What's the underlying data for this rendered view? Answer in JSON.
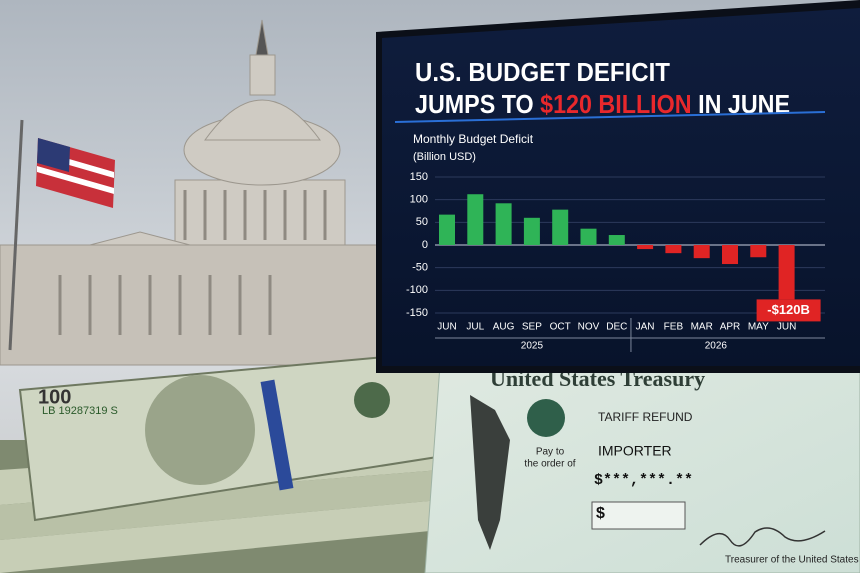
{
  "chart_data": {
    "type": "bar",
    "title": {
      "line1": "U.S. BUDGET DEFICIT",
      "line2_start": "JUMPS TO",
      "highlight": "$120 BILLION",
      "line2_end": "IN JUNE"
    },
    "subtitle": "Monthly Budget Deficit",
    "unit": "(Billion USD)",
    "category_groups": [
      {
        "label": "2025",
        "categories": [
          "JUN",
          "JUL",
          "AUG",
          "SEP",
          "OCT",
          "NOV",
          "DEC"
        ]
      },
      {
        "label": "2026",
        "categories": [
          "JAN",
          "FEB",
          "MAR",
          "APR",
          "MAY",
          "JUN"
        ]
      }
    ],
    "values": [
      67,
      112,
      92,
      60,
      78,
      36,
      22,
      -9,
      -18,
      -29,
      -42,
      -27,
      -120
    ],
    "value_labels": [
      null,
      null,
      null,
      null,
      null,
      null,
      null,
      null,
      null,
      null,
      null,
      null,
      "-$120B"
    ],
    "positive_color": "#2fb457",
    "negative_color": "#e02424",
    "ylim": [
      -150,
      150
    ],
    "yticks": [
      -150,
      -100,
      -50,
      0,
      50,
      100,
      150
    ],
    "grid": true
  },
  "check": {
    "issuer": "United States Treasury",
    "memo": "TARIFF REFUND",
    "pay_to": "Pay to",
    "order_of": "the order of",
    "payee": "IMPORTER",
    "amount": "$***,***.**",
    "amount_box": "$",
    "signer": "Treasurer of the United States"
  },
  "banknote": {
    "denomination": "100",
    "serial": "LB 19287319 S"
  }
}
